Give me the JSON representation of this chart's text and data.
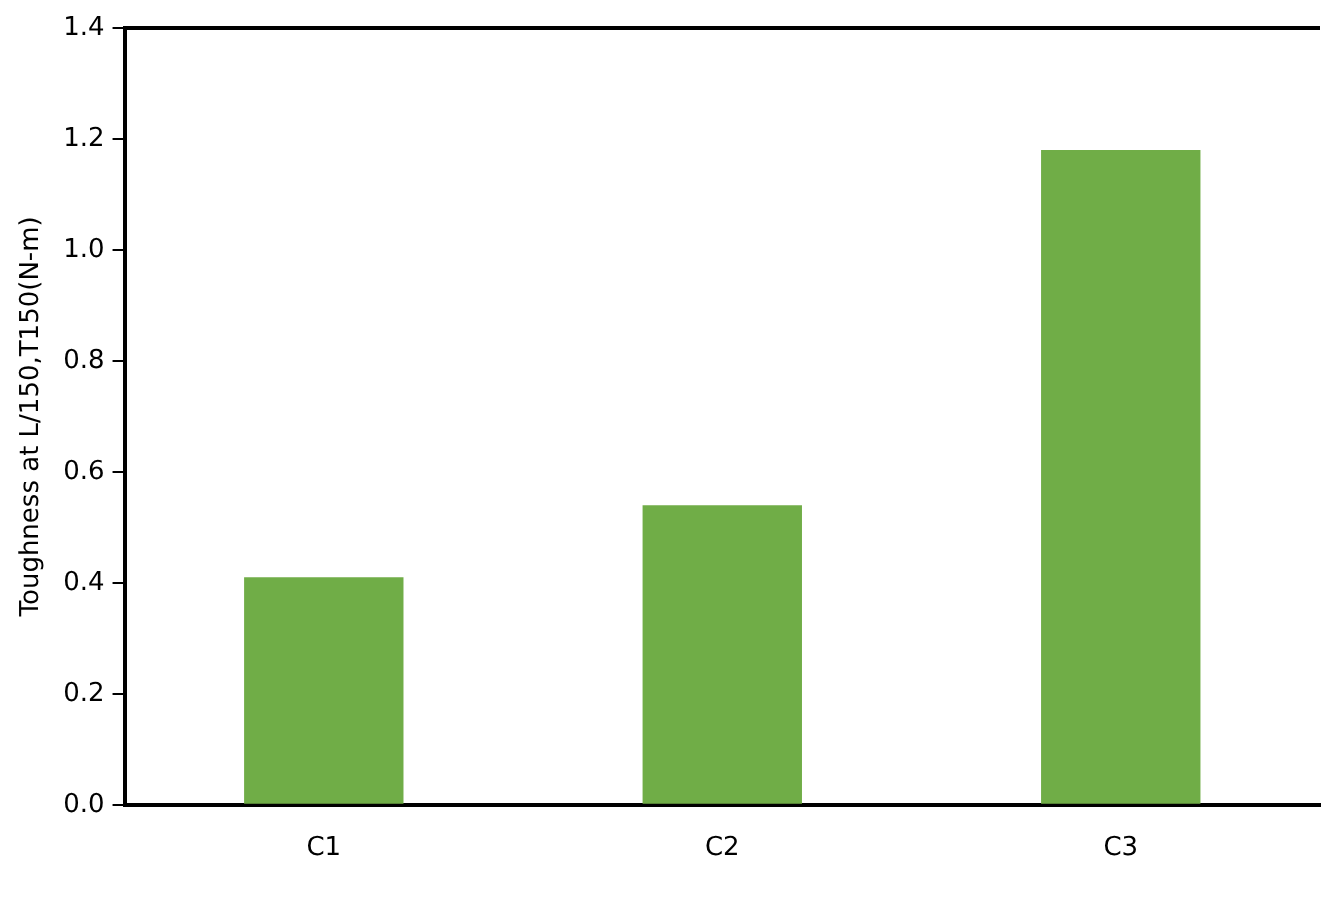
{
  "chart_data": {
    "type": "bar",
    "ylabel": "Toughness at L/150,T150(N-m)",
    "categories": [
      "C1",
      "C2",
      "C3"
    ],
    "values": [
      0.41,
      0.54,
      1.18
    ],
    "color": "#70ad47",
    "ylim": [
      0,
      1.4
    ],
    "yticks": [
      {
        "value": 0,
        "label": "0.0"
      },
      {
        "value": 0.2,
        "label": "0.2"
      },
      {
        "value": 0.4,
        "label": "0.4"
      },
      {
        "value": 0.6,
        "label": "0.6"
      },
      {
        "value": 0.8,
        "label": "0.8"
      },
      {
        "value": 1.0,
        "label": "1.0"
      },
      {
        "value": 1.2,
        "label": "1.2"
      },
      {
        "value": 1.4,
        "label": "1.4"
      }
    ],
    "grid": false,
    "legend": false
  }
}
